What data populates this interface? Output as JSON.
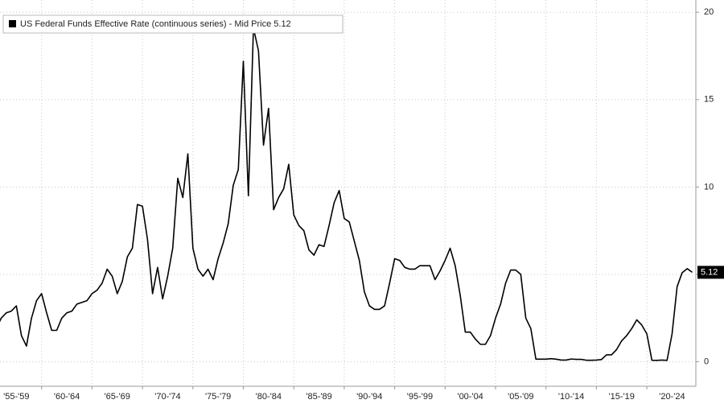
{
  "chart_data": {
    "type": "line",
    "categories": [
      null,
      null,
      null,
      null,
      null,
      "'55-'59",
      null,
      null,
      null,
      null,
      null,
      null,
      null,
      null,
      null,
      "'60-'64",
      null,
      null,
      null,
      null,
      null,
      null,
      null,
      null,
      null,
      "'65-'69",
      null,
      null,
      null,
      null,
      null,
      null,
      null,
      null,
      null,
      "'70-'74",
      null,
      null,
      null,
      null,
      null,
      null,
      null,
      null,
      null,
      "'75-'79",
      null,
      null,
      null,
      null,
      null,
      null,
      null,
      null,
      null,
      "'80-'84",
      null,
      null,
      null,
      null,
      null,
      null,
      null,
      null,
      null,
      "'85-'89",
      null,
      null,
      null,
      null,
      null,
      null,
      null,
      null,
      null,
      "'90-'94",
      null,
      null,
      null,
      null,
      null,
      null,
      null,
      null,
      null,
      "'95-'99",
      null,
      null,
      null,
      null,
      null,
      null,
      null,
      null,
      null,
      "'00-'04",
      null,
      null,
      null,
      null,
      null,
      null,
      null,
      null,
      null,
      "'05-'09",
      null,
      null,
      null,
      null,
      null,
      null,
      null,
      null,
      null,
      "'10-'14",
      null,
      null,
      null,
      null,
      null,
      null,
      null,
      null,
      null,
      "'15-'19",
      null,
      null,
      null,
      null,
      null,
      null,
      null,
      null,
      null,
      "'20-'24",
      null,
      null,
      null,
      null
    ],
    "series": [
      {
        "name": "US Federal Funds Effective Rate (continuous series) - Mid Price",
        "color": "#000000",
        "values": [
          1.3,
          1.9,
          2.5,
          2.8,
          2.9,
          3.2,
          1.5,
          0.9,
          2.5,
          3.5,
          3.9,
          2.8,
          1.8,
          1.8,
          2.5,
          2.8,
          2.9,
          3.3,
          3.4,
          3.5,
          3.9,
          4.1,
          4.5,
          5.3,
          4.9,
          3.9,
          4.6,
          6.0,
          6.5,
          9.0,
          8.9,
          7.0,
          3.9,
          5.4,
          3.6,
          4.9,
          6.5,
          10.5,
          9.4,
          11.9,
          6.5,
          5.3,
          4.9,
          5.3,
          4.7,
          5.9,
          6.8,
          7.9,
          10.1,
          11.0,
          17.2,
          9.5,
          19.1,
          17.8,
          12.4,
          14.5,
          8.7,
          9.4,
          9.9,
          11.3,
          8.4,
          7.8,
          7.5,
          6.4,
          6.1,
          6.7,
          6.6,
          7.8,
          9.1,
          9.8,
          8.2,
          8.0,
          6.9,
          5.8,
          4.0,
          3.2,
          3.0,
          3.0,
          3.2,
          4.5,
          5.9,
          5.8,
          5.4,
          5.3,
          5.3,
          5.5,
          5.5,
          5.5,
          4.7,
          5.2,
          5.8,
          6.5,
          5.5,
          3.8,
          1.7,
          1.7,
          1.3,
          1.0,
          1.0,
          1.5,
          2.5,
          3.3,
          4.5,
          5.25,
          5.25,
          5.0,
          2.5,
          1.9,
          0.15,
          0.15,
          0.15,
          0.18,
          0.15,
          0.1,
          0.1,
          0.16,
          0.14,
          0.14,
          0.09,
          0.09,
          0.1,
          0.13,
          0.4,
          0.4,
          0.7,
          1.2,
          1.5,
          1.9,
          2.4,
          2.1,
          1.6,
          0.09,
          0.08,
          0.1,
          0.08,
          1.6,
          4.3,
          5.1,
          5.33,
          5.12
        ]
      }
    ],
    "ylim": [
      -1.4,
      20.7
    ],
    "yticks": [
      0,
      5,
      10,
      15,
      20
    ],
    "grid": true
  }
}
